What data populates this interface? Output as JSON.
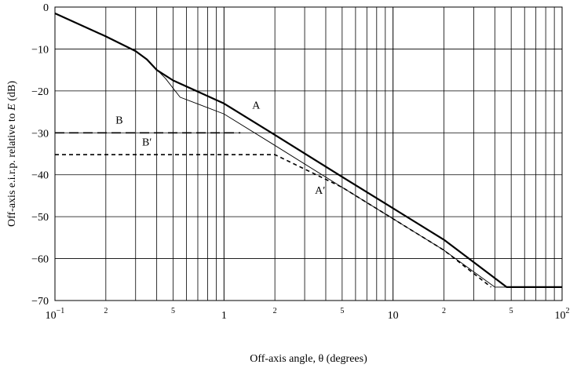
{
  "chart_data": {
    "type": "line",
    "title": "",
    "xlabel": "Off-axis angle, θ (degrees)",
    "ylabel_prefix": "Off-axis e.i.r.p. relative to ",
    "ylabel_var": "E",
    "ylabel_suffix": " (dB)",
    "x_scale": "log",
    "xlim": [
      0.1,
      100
    ],
    "ylim": [
      -70,
      0
    ],
    "grid": true,
    "x_major_ticks": [
      {
        "value": 0.1,
        "label": "10",
        "sup": "−1"
      },
      {
        "value": 1,
        "label": "1",
        "sup": ""
      },
      {
        "value": 10,
        "label": "10",
        "sup": ""
      },
      {
        "value": 100,
        "label": "10",
        "sup": "2"
      }
    ],
    "x_minor_labels": [
      {
        "value": 0.2,
        "label": "2"
      },
      {
        "value": 0.5,
        "label": "5"
      },
      {
        "value": 2,
        "label": "2"
      },
      {
        "value": 5,
        "label": "5"
      },
      {
        "value": 20,
        "label": "2"
      },
      {
        "value": 50,
        "label": "5"
      }
    ],
    "y_ticks": [
      0,
      -10,
      -20,
      -30,
      -40,
      -50,
      -60,
      -70
    ],
    "y_tick_labels": [
      "0",
      "−10",
      "−20",
      "−30",
      "−40",
      "−50",
      "−60",
      "−70"
    ],
    "series": [
      {
        "name": "A",
        "style": "solid-thick",
        "points": [
          [
            0.1,
            -1.5
          ],
          [
            0.2,
            -7
          ],
          [
            0.3,
            -10.5
          ],
          [
            0.35,
            -12.5
          ],
          [
            0.4,
            -15
          ],
          [
            0.5,
            -17.5
          ],
          [
            1,
            -23
          ],
          [
            2,
            -30.5
          ],
          [
            5,
            -40.5
          ],
          [
            10,
            -48
          ],
          [
            20,
            -55.5
          ],
          [
            47,
            -66.8
          ],
          [
            100,
            -66.8
          ]
        ]
      },
      {
        "name": "A′",
        "style": "solid-thin",
        "points": [
          [
            0.35,
            -12.5
          ],
          [
            0.45,
            -17
          ],
          [
            0.55,
            -21.5
          ],
          [
            1,
            -25.5
          ],
          [
            2,
            -33
          ],
          [
            5,
            -43
          ],
          [
            10,
            -50.5
          ],
          [
            20,
            -58
          ],
          [
            40,
            -66.8
          ],
          [
            47,
            -66.8
          ]
        ]
      },
      {
        "name": "B",
        "style": "long-dash",
        "points": [
          [
            0.1,
            -30
          ],
          [
            1.25,
            -30
          ]
        ]
      },
      {
        "name": "B′",
        "style": "short-dash",
        "points": [
          [
            0.1,
            -35.2
          ],
          [
            2,
            -35.2
          ],
          [
            5,
            -43
          ],
          [
            10,
            -50.5
          ],
          [
            20,
            -58
          ],
          [
            38,
            -66.8
          ]
        ]
      }
    ],
    "annotations": [
      {
        "text": "A",
        "x": 1.55,
        "y": -24.2
      },
      {
        "text": "A′",
        "x": 3.7,
        "y": -44.5
      },
      {
        "text": "B",
        "x": 0.24,
        "y": -27.8
      },
      {
        "text": "B′",
        "x": 0.35,
        "y": -33
      }
    ]
  }
}
